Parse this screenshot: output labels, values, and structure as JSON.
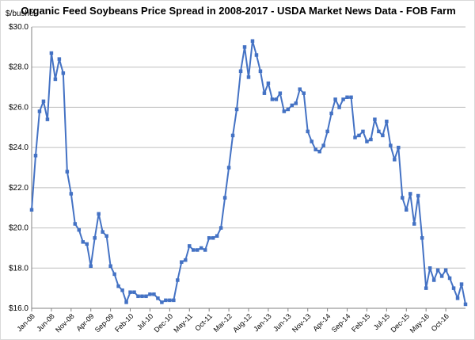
{
  "chart_data": {
    "type": "line",
    "title": "Organic Feed Soybeans Price Spread in 2008-2017 - USDA Market News Data - FOB Farm",
    "ylabel": "$/bushel",
    "xlabel": "",
    "ylim": [
      16.0,
      30.0
    ],
    "yticks": [
      "$16.0",
      "$18.0",
      "$20.0",
      "$22.0",
      "$24.0",
      "$26.0",
      "$28.0",
      "$30.0"
    ],
    "ytick_values": [
      16,
      18,
      20,
      22,
      24,
      26,
      28,
      30
    ],
    "xticks": [
      {
        "label": "Jan-08",
        "index": 0
      },
      {
        "label": "Jun-08",
        "index": 5
      },
      {
        "label": "Nov-08",
        "index": 10
      },
      {
        "label": "Apr-09",
        "index": 15
      },
      {
        "label": "Sep-09",
        "index": 20
      },
      {
        "label": "Feb-10",
        "index": 25
      },
      {
        "label": "Jul-10",
        "index": 30
      },
      {
        "label": "Dec-10",
        "index": 35
      },
      {
        "label": "May-11",
        "index": 40
      },
      {
        "label": "Oct-11",
        "index": 45
      },
      {
        "label": "Mar-12",
        "index": 50
      },
      {
        "label": "Aug-12",
        "index": 55
      },
      {
        "label": "Jan-13",
        "index": 60
      },
      {
        "label": "Jun-13",
        "index": 65
      },
      {
        "label": "Nov-13",
        "index": 70
      },
      {
        "label": "Apr-14",
        "index": 75
      },
      {
        "label": "Sep-14",
        "index": 80
      },
      {
        "label": "Feb-15",
        "index": 85
      },
      {
        "label": "Jul-15",
        "index": 90
      },
      {
        "label": "Dec-15",
        "index": 95
      },
      {
        "label": "May-16",
        "index": 100
      },
      {
        "label": "Oct-16",
        "index": 105
      }
    ],
    "grid": true,
    "legend": "none",
    "line_color": "#4472c4",
    "series": [
      {
        "values": [
          20.9,
          23.6,
          25.8,
          26.3,
          25.4,
          28.7,
          27.4,
          28.4,
          27.7,
          22.8,
          21.7,
          20.2,
          19.9,
          19.3,
          19.2,
          18.1,
          19.5,
          20.7,
          19.8,
          19.6,
          18.1,
          17.7,
          17.1,
          16.9,
          16.3,
          16.8,
          16.8,
          16.6,
          16.6,
          16.6,
          16.7,
          16.7,
          16.5,
          16.3,
          16.4,
          16.4,
          16.4,
          17.4,
          18.3,
          18.4,
          19.1,
          18.9,
          18.9,
          19.0,
          18.9,
          19.5,
          19.5,
          19.6,
          20.0,
          21.5,
          23.0,
          24.6,
          25.9,
          27.8,
          29.0,
          27.5,
          29.3,
          28.6,
          27.8,
          26.7,
          27.2,
          26.4,
          26.4,
          26.7,
          25.8,
          25.9,
          26.1,
          26.2,
          26.9,
          26.7,
          24.8,
          24.3,
          23.9,
          23.8,
          24.1,
          24.8,
          25.7,
          26.4,
          26.0,
          26.4,
          26.5,
          26.5,
          24.5,
          24.6,
          24.8,
          24.3,
          24.4,
          25.4,
          24.8,
          24.6,
          25.3,
          24.1,
          23.4,
          24.0,
          21.5,
          20.9,
          21.7,
          20.2,
          21.6,
          19.5,
          17.0,
          18.0,
          17.4,
          17.9,
          17.6,
          17.9,
          17.5,
          17.0,
          16.5,
          17.2,
          16.2
        ]
      }
    ]
  }
}
